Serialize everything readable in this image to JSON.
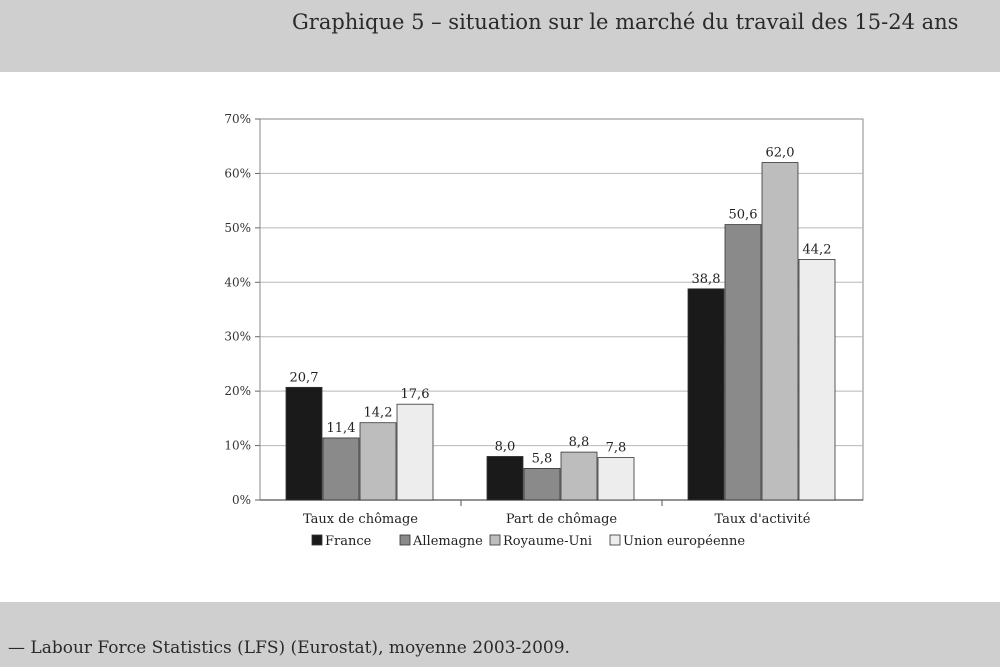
{
  "header": {
    "title": "Graphique 5 – situation sur le marché du travail des 15-24 ans"
  },
  "footer": {
    "source": "— Labour Force Statistics (LFS) (Eurostat), moyenne 2003-2009."
  },
  "colors": {
    "header_bg": "#cfcfcf",
    "France": "#1a1a1a",
    "Allemagne": "#8a8a8a",
    "Royaume-Uni": "#bdbdbd",
    "Union européenne": "#ededed"
  },
  "chart_data": {
    "type": "bar",
    "title": "",
    "xlabel": "",
    "ylabel": "",
    "ylim": [
      0,
      70
    ],
    "yticks": [
      "0%",
      "10%",
      "20%",
      "30%",
      "40%",
      "50%",
      "60%",
      "70%"
    ],
    "grid": true,
    "legend_position": "bottom",
    "categories": [
      "Taux de chômage",
      "Part de chômage",
      "Taux d'activité"
    ],
    "series": [
      {
        "name": "France",
        "values": [
          20.7,
          8.0,
          38.8
        ],
        "labels": [
          "20,7",
          "8,0",
          "38,8"
        ]
      },
      {
        "name": "Allemagne",
        "values": [
          11.4,
          5.8,
          50.6
        ],
        "labels": [
          "11,4",
          "5,8",
          "50,6"
        ]
      },
      {
        "name": "Royaume-Uni",
        "values": [
          14.2,
          8.8,
          62.0
        ],
        "labels": [
          "14,2",
          "8,8",
          "62,0"
        ]
      },
      {
        "name": "Union européenne",
        "values": [
          17.6,
          7.8,
          44.2
        ],
        "labels": [
          "17,6",
          "7,8",
          "44,2"
        ]
      }
    ]
  }
}
